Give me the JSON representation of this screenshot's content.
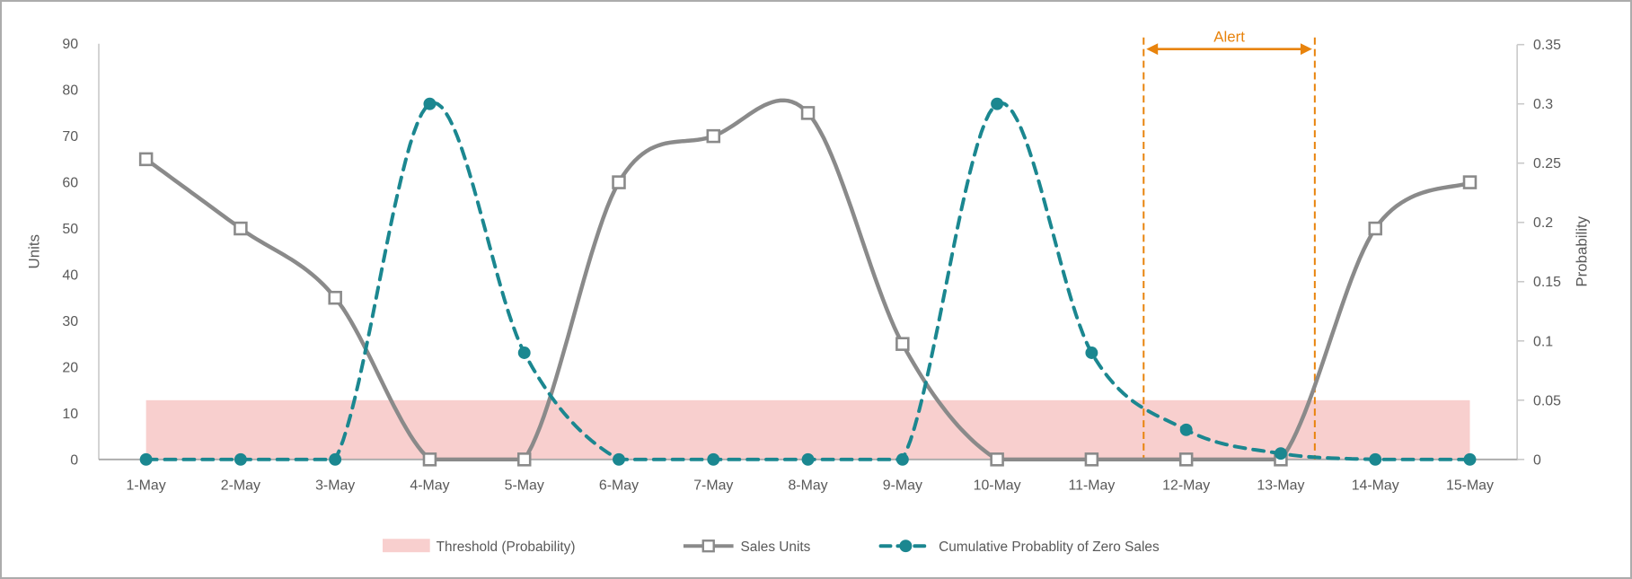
{
  "chart_data": {
    "type": "line",
    "title": "",
    "categories": [
      "1-May",
      "2-May",
      "3-May",
      "4-May",
      "5-May",
      "6-May",
      "7-May",
      "8-May",
      "9-May",
      "10-May",
      "11-May",
      "12-May",
      "13-May",
      "14-May",
      "15-May"
    ],
    "series": [
      {
        "name": "Sales Units",
        "axis": "units",
        "marker": "square",
        "line_style": "solid",
        "smoothed": true,
        "color": "#8A8A8A",
        "values": [
          65,
          50,
          35,
          0,
          0,
          60,
          70,
          75,
          25,
          0,
          0,
          0,
          0,
          50,
          60
        ]
      },
      {
        "name": "Cumulative Probablity of Zero Sales",
        "axis": "probability",
        "marker": "circle",
        "line_style": "dashed",
        "smoothed": true,
        "color": "#1B8790",
        "values": [
          0,
          0,
          0,
          0.3,
          0.09,
          0,
          0,
          0,
          0,
          0.3,
          0.09,
          0.025,
          0.005,
          0,
          0
        ]
      }
    ],
    "threshold_band": {
      "name": "Threshold (Probability)",
      "axis": "probability",
      "from": 0,
      "to": 0.05,
      "color": "#F8CFCE"
    },
    "axes": {
      "left": {
        "label": "Units",
        "min": 0,
        "max": 90,
        "ticks": [
          0,
          10,
          20,
          30,
          40,
          50,
          60,
          70,
          80,
          90
        ],
        "tick_labels": [
          "0",
          "10",
          "20",
          "30",
          "40",
          "50",
          "60",
          "70",
          "80",
          "90"
        ]
      },
      "right": {
        "label": "Probability",
        "min": 0,
        "max": 0.35,
        "ticks": [
          0,
          0.05,
          0.1,
          0.15,
          0.2,
          0.25,
          0.3,
          0.35
        ],
        "tick_labels": [
          "0",
          "0.05",
          "0.1",
          "0.15",
          "0.2",
          "0.25",
          "0.3",
          "0.35"
        ]
      }
    },
    "annotation": {
      "label": "Alert",
      "color": "#E8830C",
      "start_index": 10.55,
      "end_index": 12.36
    },
    "legend": [
      {
        "label": "Threshold (Probability)",
        "color": "#F8CFCE",
        "type": "band"
      },
      {
        "label": "Sales Units",
        "color": "#8A8A8A",
        "type": "line-square"
      },
      {
        "label": "Cumulative Probablity of Zero Sales",
        "color": "#1B8790",
        "type": "dashed-circle"
      }
    ],
    "text_color": "#595959",
    "axis_line_color": "#C9C9C9",
    "baseline_color": "#A9A9A9"
  }
}
